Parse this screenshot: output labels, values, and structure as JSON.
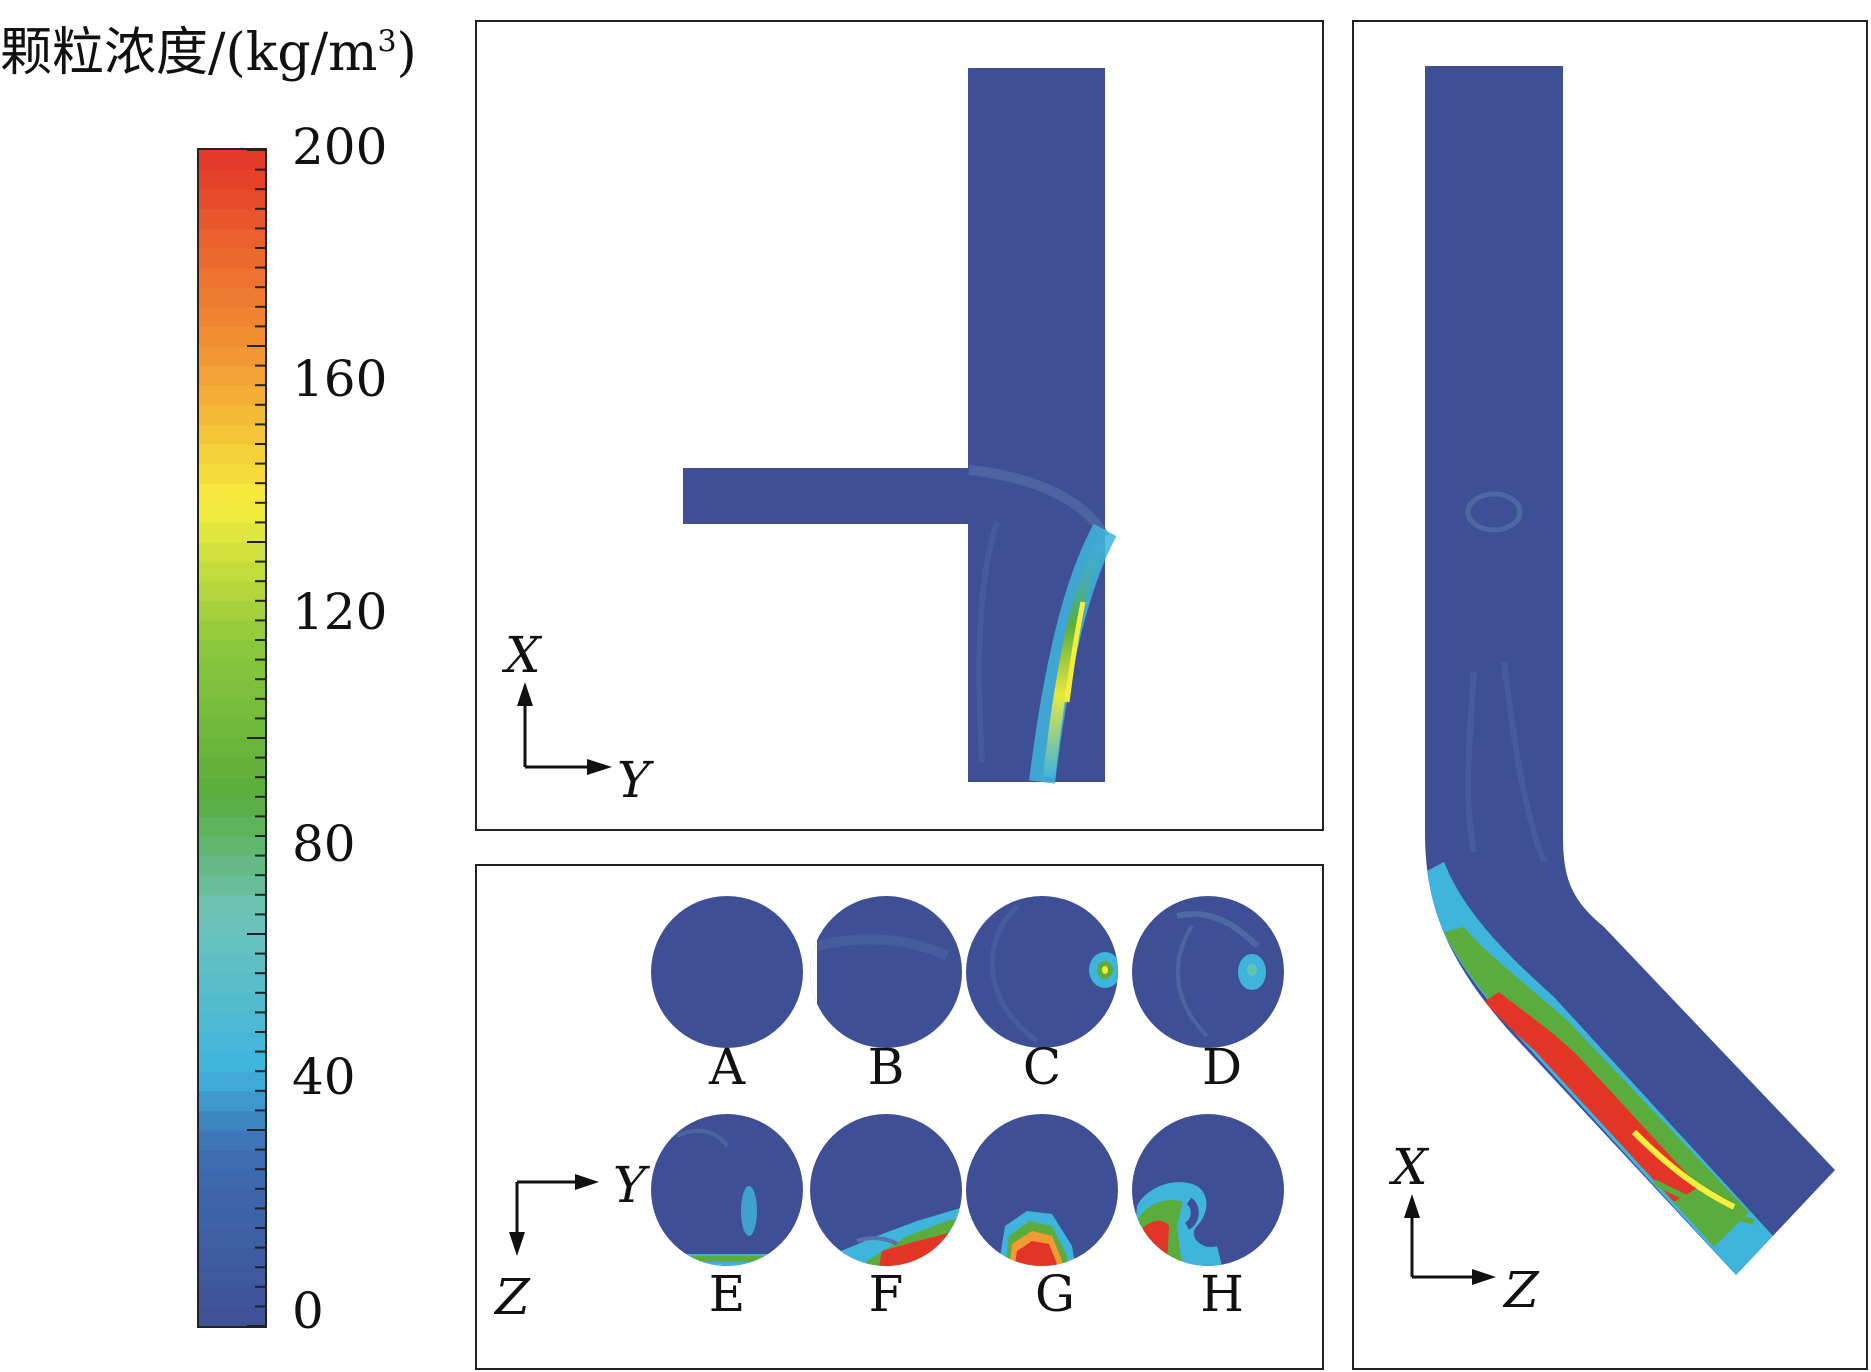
{
  "legend": {
    "title_main": "颗粒浓度/(kg/m",
    "title_sup": "3",
    "title_end": ")",
    "ticks": [
      "200",
      "160",
      "120",
      "80",
      "40",
      "0"
    ],
    "tick_values": [
      200,
      160,
      120,
      80,
      40,
      0
    ],
    "range": [
      0,
      200
    ]
  },
  "colors": {
    "low": "#3f4f95",
    "cyan": "#3fb5de",
    "green": "#5aad3c",
    "yellow": "#f6ee3d",
    "orange": "#f39a34",
    "high": "#e33527"
  },
  "panel_top": {
    "axis_up": "X",
    "axis_right": "Y"
  },
  "panel_bottom": {
    "axis_right": "Y",
    "axis_down": "Z",
    "sections": [
      {
        "label": "A"
      },
      {
        "label": "B"
      },
      {
        "label": "C"
      },
      {
        "label": "D"
      },
      {
        "label": "E"
      },
      {
        "label": "F"
      },
      {
        "label": "G"
      },
      {
        "label": "H"
      }
    ]
  },
  "panel_right": {
    "axis_up": "X",
    "axis_right": "Z"
  }
}
